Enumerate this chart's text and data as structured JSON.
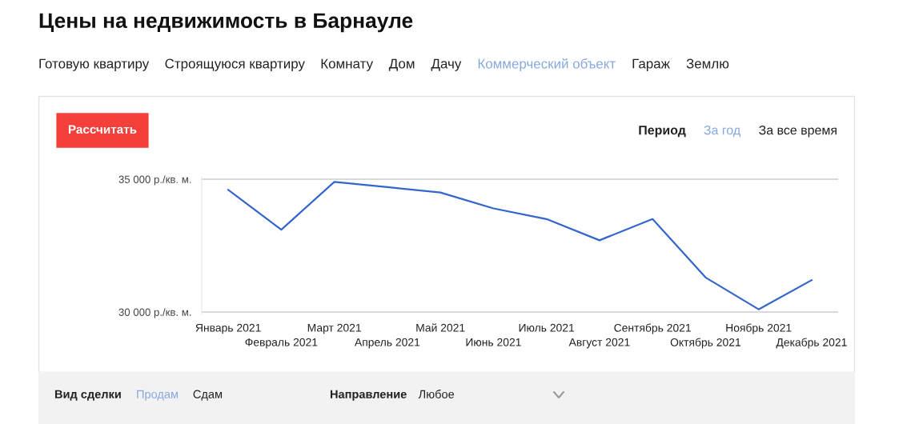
{
  "chart_data": {
    "type": "line",
    "title": "Цены на недвижимость в Барнауле",
    "categories": [
      "Январь 2021",
      "Февраль 2021",
      "Март 2021",
      "Апрель 2021",
      "Май 2021",
      "Июнь 2021",
      "Июль 2021",
      "Август 2021",
      "Сентябрь 2021",
      "Октябрь 2021",
      "Ноябрь 2021",
      "Декабрь 2021"
    ],
    "series": [
      {
        "color": "#3366cc",
        "values": [
          34600,
          33100,
          34900,
          34700,
          34500,
          33900,
          33500,
          32700,
          33500,
          31300,
          30100,
          31200
        ]
      }
    ],
    "ylim": [
      29900,
      35100
    ],
    "yticks": [
      {
        "value": 30000,
        "label": "30 000 р./кв. м."
      },
      {
        "value": 35000,
        "label": "35 000 р./кв. м."
      }
    ],
    "grid": "y",
    "line_style": "solid",
    "annotations": [
      "Готовую квартиру",
      "Строящуюся квартиру",
      "Комнату",
      "Дом",
      "Дачу",
      "Коммерческий объект",
      "Гараж",
      "Землю",
      "Рассчитать",
      "Период",
      "За год",
      "За все время",
      "Вид сделки",
      "Продам",
      "Сдам",
      "Направление",
      "Любое"
    ]
  }
}
